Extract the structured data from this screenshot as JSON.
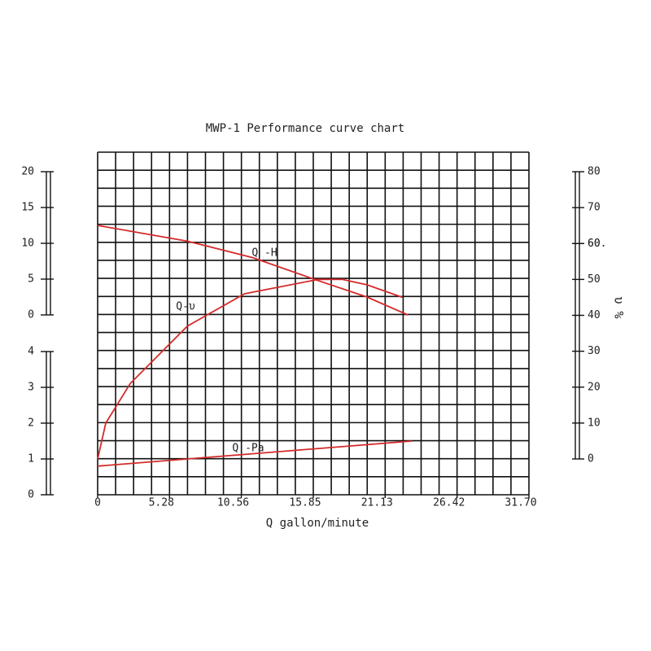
{
  "chart_data": {
    "type": "line",
    "title": "MWP-1 Performance curve chart",
    "xlabel": "Q gallon/minute",
    "y2label": "υ %",
    "xlim": [
      0,
      31.7
    ],
    "xticks": [
      0,
      5.28,
      10.56,
      15.85,
      21.13,
      26.42,
      {
        "value": 31.7,
        "label": "31.70"
      }
    ],
    "ylim": [
      0,
      20
    ],
    "yticks": [
      0,
      5,
      10,
      15,
      20
    ],
    "y2lim": [
      0,
      80
    ],
    "y2ticks": [
      0,
      10,
      20,
      30,
      40,
      50,
      60,
      {
        "value": 60,
        "label": "60."
      },
      70,
      80
    ],
    "y3lim": [
      0,
      4
    ],
    "y3ticks": [
      0,
      1,
      2,
      3,
      4
    ],
    "grid": true,
    "series": [
      {
        "name": "Q -H",
        "color": "#d42a2a",
        "axis": "y",
        "x": [
          0,
          6.6,
          11.4,
          16.2,
          19.8,
          22.8
        ],
        "values": [
          12.5,
          10.3,
          8,
          4.8,
          2.5,
          0
        ]
      },
      {
        "name": "Q-υ",
        "color": "#d42a2a",
        "axis": "y2",
        "x": [
          0,
          0.6,
          2.4,
          6.6,
          10.8,
          16.2,
          18,
          19.8,
          22.4
        ],
        "values": [
          0,
          10,
          21,
          37,
          46,
          50,
          50,
          48.5,
          45
        ]
      },
      {
        "name": "Q -Pa",
        "color": "#d42a2a",
        "axis": "y3",
        "x": [
          0,
          23.1
        ],
        "values": [
          0.8,
          1.5
        ]
      }
    ]
  }
}
